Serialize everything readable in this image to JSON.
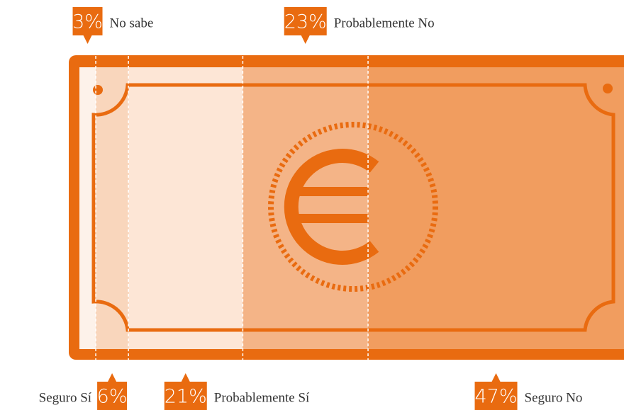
{
  "chart_data": {
    "type": "bar",
    "categories": [
      "No sabe",
      "Seguro Sí",
      "Probablemente Sí",
      "Probablemente No",
      "Seguro No"
    ],
    "values": [
      3,
      6,
      21,
      23,
      47
    ],
    "value_labels": [
      "3%",
      "6%",
      "21%",
      "23%",
      "47%"
    ],
    "colors": [
      "#fdf2ea",
      "#f9d6bc",
      "#fde6d6",
      "#f4b487",
      "#f19d5f"
    ]
  }
}
